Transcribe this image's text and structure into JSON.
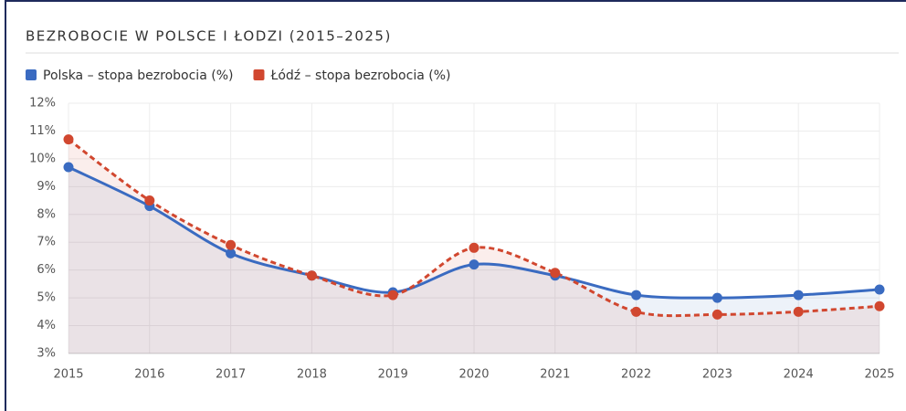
{
  "chart_data": {
    "type": "line",
    "title": "BEZROBOCIE W POLSCE I ŁODZI (2015–2025)",
    "categories": [
      "2015",
      "2016",
      "2017",
      "2018",
      "2019",
      "2020",
      "2021",
      "2022",
      "2023",
      "2024",
      "2025"
    ],
    "series": [
      {
        "name": "Polska – stopa bezrobocia (%)",
        "color": "#3a6bc1",
        "dashed": false,
        "values": [
          9.7,
          8.3,
          6.6,
          5.8,
          5.2,
          6.2,
          5.8,
          5.1,
          5.0,
          5.1,
          5.3
        ]
      },
      {
        "name": "Łódź – stopa bezrobocia (%)",
        "color": "#d1472f",
        "dashed": true,
        "values": [
          10.7,
          8.5,
          6.9,
          5.8,
          5.1,
          6.8,
          5.9,
          4.5,
          4.4,
          4.5,
          4.7
        ]
      }
    ],
    "ylim": [
      3,
      12
    ],
    "yticks": [
      {
        "value": 3,
        "label": "3%"
      },
      {
        "value": 4,
        "label": "4%"
      },
      {
        "value": 5,
        "label": "5%"
      },
      {
        "value": 6,
        "label": "6%"
      },
      {
        "value": 7,
        "label": "7%"
      },
      {
        "value": 8,
        "label": "8%"
      },
      {
        "value": 9,
        "label": "9%"
      },
      {
        "value": 10,
        "label": "10%"
      },
      {
        "value": 11,
        "label": "11%"
      },
      {
        "value": 12,
        "label": "12%"
      }
    ],
    "grid": true,
    "legend": "top-left"
  }
}
